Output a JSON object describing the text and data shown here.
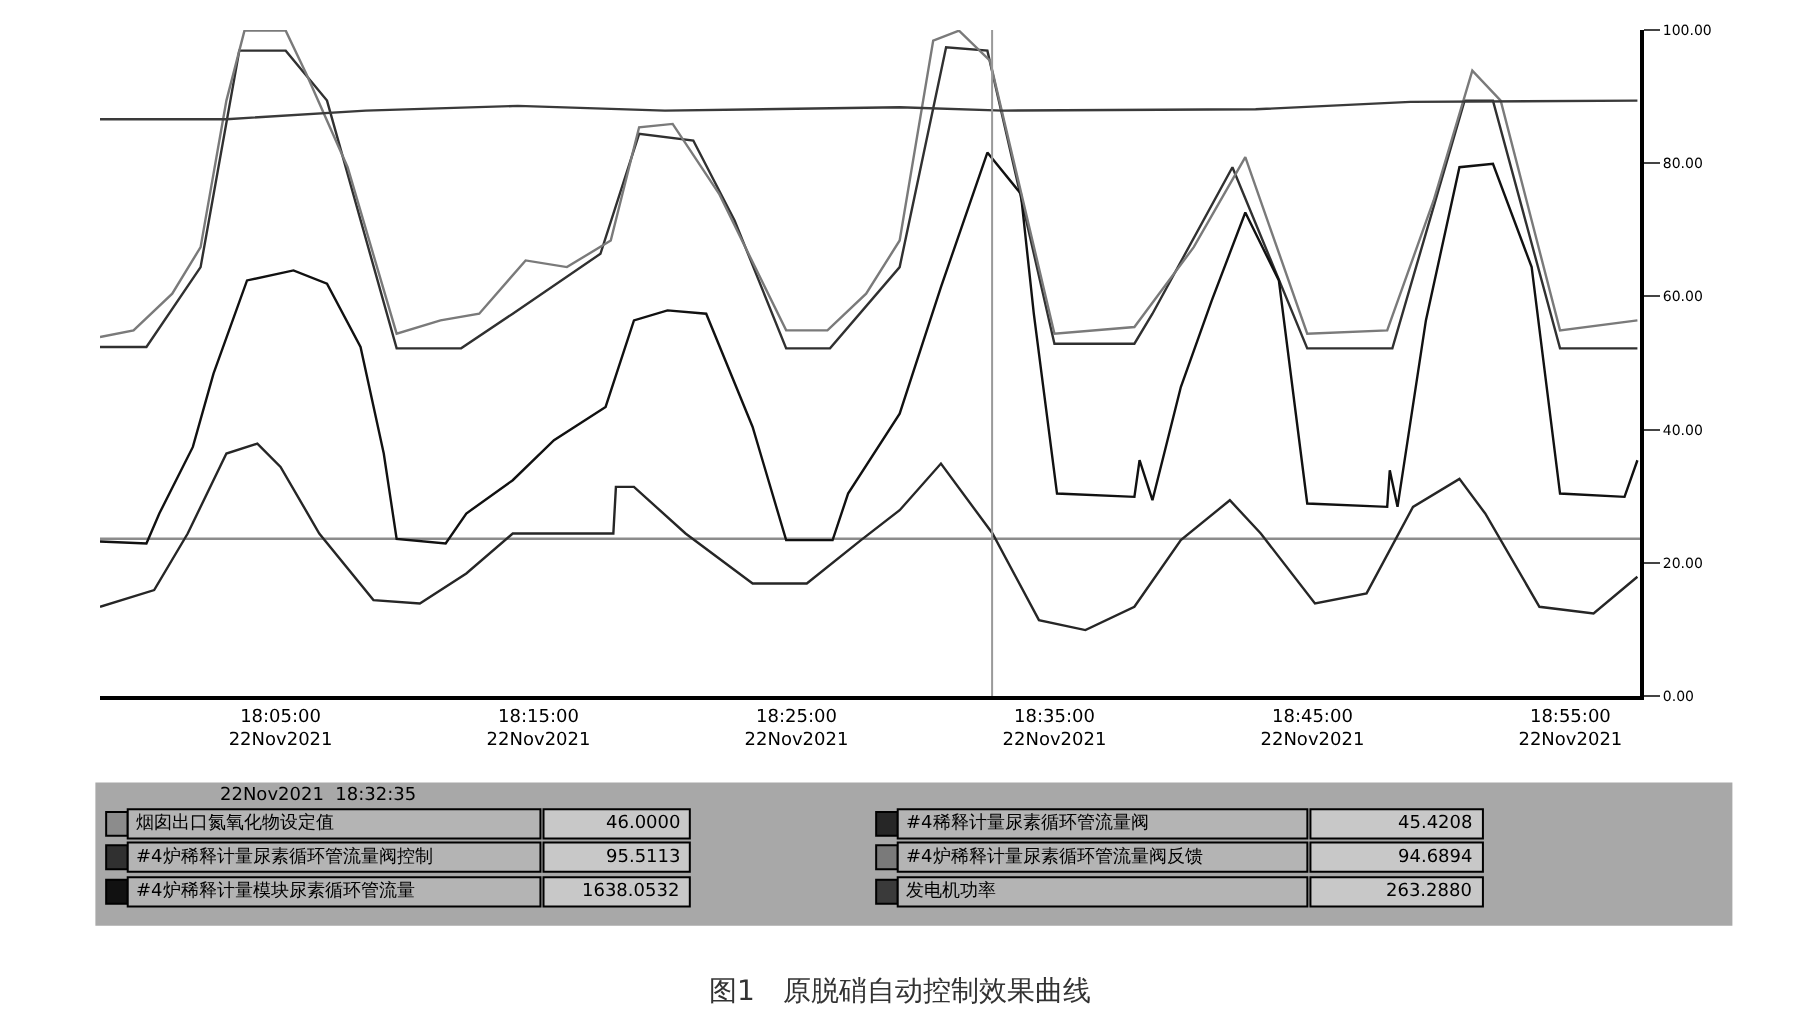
{
  "chart_data": {
    "type": "line",
    "title": "图1　原脱硝自动控制效果曲线",
    "legend": "bottom",
    "xlim": [
      "2021-11-22T17:58:00",
      "2021-11-22T18:57:42"
    ],
    "xticks": [
      {
        "value": "2021-11-22T18:05",
        "label": "18:05:00\n22Nov2021"
      },
      {
        "value": "2021-11-22T18:15",
        "label": "18:15:00\n22Nov2021"
      },
      {
        "value": "2021-11-22T18:25",
        "label": "18:25:00\n22Nov2021"
      },
      {
        "value": "2021-11-22T18:35",
        "label": "18:35:00\n22Nov2021"
      },
      {
        "value": "2021-11-22T18:45",
        "label": "18:45:00\n22Nov2021"
      },
      {
        "value": "2021-11-22T18:55",
        "label": "18:55:00\n22Nov2021"
      }
    ],
    "ylim": [
      0,
      100
    ],
    "yticks": [
      {
        "value": 0,
        "label": "0.00"
      },
      {
        "value": 20,
        "label": "20.00"
      },
      {
        "value": 40,
        "label": "40.00"
      },
      {
        "value": 60,
        "label": "60.00"
      },
      {
        "value": 80,
        "label": "80.00"
      },
      {
        "value": 100,
        "label": "100.00"
      }
    ],
    "ref_lines": [
      {
        "axis": "x",
        "value": "2021-11-22T18:32:35",
        "color": "#9a9a9a"
      }
    ],
    "annotations": [
      "46.0000",
      "95.5113",
      "1638.0532",
      "45.4208",
      "94.6894",
      "263.2880",
      "22Nov2021  18:32:35"
    ],
    "series": [
      {
        "name": "烟囱出口氮氧化物设定值",
        "color": "#8c8c8c",
        "x": [
          "2021-11-22T17:58:00",
          "2021-11-22T18:57:42"
        ],
        "values": [
          23.6,
          23.6
        ]
      },
      {
        "name": "#4炉稀释计量尿素循环管流量阀控制",
        "color": "#303030",
        "x": [
          "2021-11-22T17:58:00",
          "2021-11-22T17:59:48",
          "2021-11-22T18:01:54",
          "2021-11-22T18:03:24",
          "2021-11-22T18:05:12",
          "2021-11-22T18:06:48",
          "2021-11-22T18:09:30",
          "2021-11-22T18:12:00",
          "2021-11-22T18:14:00",
          "2021-11-22T18:17:24",
          "2021-11-22T18:18:54",
          "2021-11-22T18:21:00",
          "2021-11-22T18:22:36",
          "2021-11-22T18:24:36",
          "2021-11-22T18:26:18",
          "2021-11-22T18:29:00",
          "2021-11-22T18:30:48",
          "2021-11-22T18:32:24",
          "2021-11-22T18:35:00",
          "2021-11-22T18:38:06",
          "2021-11-22T18:38:48",
          "2021-11-22T18:41:54",
          "2021-11-22T18:44:48",
          "2021-11-22T18:48:06",
          "2021-11-22T18:50:54",
          "2021-11-22T18:52:00",
          "2021-11-22T18:54:36",
          "2021-11-22T18:57:36"
        ],
        "values": [
          52.4,
          52.4,
          64.4,
          96.9,
          96.9,
          89.4,
          52.2,
          52.2,
          57.4,
          66.4,
          84.4,
          83.4,
          71.4,
          52.2,
          52.2,
          64.4,
          97.4,
          96.9,
          52.9,
          52.9,
          57.4,
          79.4,
          52.2,
          52.2,
          89.4,
          89.4,
          52.2,
          52.2
        ]
      },
      {
        "name": "#4炉稀释计量模块尿素循环管流量",
        "color": "#111111",
        "x": [
          "2021-11-22T17:58:00",
          "2021-11-22T17:59:48",
          "2021-11-22T18:00:18",
          "2021-11-22T18:01:36",
          "2021-11-22T18:02:24",
          "2021-11-22T18:03:42",
          "2021-11-22T18:05:30",
          "2021-11-22T18:06:48",
          "2021-11-22T18:08:06",
          "2021-11-22T18:09:00",
          "2021-11-22T18:09:30",
          "2021-11-22T18:11:24",
          "2021-11-22T18:12:12",
          "2021-11-22T18:14:00",
          "2021-11-22T18:15:36",
          "2021-11-22T18:17:36",
          "2021-11-22T18:18:42",
          "2021-11-22T18:20:00",
          "2021-11-22T18:21:30",
          "2021-11-22T18:23:18",
          "2021-11-22T18:24:36",
          "2021-11-22T18:26:24",
          "2021-11-22T18:27:00",
          "2021-11-22T18:29:00",
          "2021-11-22T18:30:36",
          "2021-11-22T18:32:24",
          "2021-11-22T18:33:42",
          "2021-11-22T18:34:12",
          "2021-11-22T18:35:06",
          "2021-11-22T18:38:06",
          "2021-11-22T18:38:18",
          "2021-11-22T18:38:48",
          "2021-11-22T18:39:54",
          "2021-11-22T18:41:06",
          "2021-11-22T18:42:24",
          "2021-11-22T18:43:42",
          "2021-11-22T18:44:48",
          "2021-11-22T18:47:54",
          "2021-11-22T18:48:00",
          "2021-11-22T18:48:18",
          "2021-11-22T18:49:24",
          "2021-11-22T18:50:42",
          "2021-11-22T18:52:00",
          "2021-11-22T18:53:30",
          "2021-11-22T18:54:36",
          "2021-11-22T18:57:06",
          "2021-11-22T18:57:36"
        ],
        "values": [
          23.2,
          22.9,
          27.4,
          37.4,
          48.4,
          62.4,
          63.9,
          61.9,
          52.4,
          36.4,
          23.6,
          22.9,
          27.4,
          32.4,
          38.4,
          43.4,
          56.4,
          57.9,
          57.4,
          40.4,
          23.4,
          23.4,
          30.4,
          42.4,
          61.4,
          81.6,
          75.4,
          57.4,
          30.4,
          29.9,
          35.4,
          29.4,
          46.4,
          59.4,
          72.6,
          62.4,
          28.9,
          28.4,
          33.9,
          28.4,
          56.4,
          79.4,
          79.9,
          64.4,
          30.4,
          29.9,
          35.4
        ]
      },
      {
        "name": "#4稀释计量尿素循环管流量阀",
        "color": "#262626",
        "x": [
          "2021-11-22T17:58:00",
          "2021-11-22T18:00:06",
          "2021-11-22T18:01:24",
          "2021-11-22T18:02:54",
          "2021-11-22T18:04:06",
          "2021-11-22T18:05:00",
          "2021-11-22T18:06:30",
          "2021-11-22T18:08:36",
          "2021-11-22T18:10:24",
          "2021-11-22T18:12:12",
          "2021-11-22T18:14:00",
          "2021-11-22T18:17:54",
          "2021-11-22T18:18:00",
          "2021-11-22T18:18:42",
          "2021-11-22T18:20:42",
          "2021-11-22T18:23:18",
          "2021-11-22T18:25:24",
          "2021-11-22T18:27:30",
          "2021-11-22T18:29:00",
          "2021-11-22T18:30:36",
          "2021-11-22T18:32:36",
          "2021-11-22T18:34:24",
          "2021-11-22T18:36:12",
          "2021-11-22T18:38:06",
          "2021-11-22T18:39:54",
          "2021-11-22T18:41:48",
          "2021-11-22T18:43:00",
          "2021-11-22T18:45:06",
          "2021-11-22T18:47:06",
          "2021-11-22T18:48:54",
          "2021-11-22T18:50:42",
          "2021-11-22T18:51:42",
          "2021-11-22T18:53:48",
          "2021-11-22T18:55:54",
          "2021-11-22T18:57:36"
        ],
        "values": [
          13.4,
          15.9,
          24.4,
          36.4,
          37.9,
          34.4,
          24.4,
          14.4,
          13.9,
          18.4,
          24.4,
          24.4,
          31.4,
          31.4,
          24.4,
          16.9,
          16.9,
          23.4,
          27.9,
          34.9,
          24.4,
          11.4,
          9.9,
          13.4,
          23.4,
          29.4,
          24.4,
          13.9,
          15.4,
          28.4,
          32.6,
          27.4,
          13.4,
          12.4,
          17.9
        ]
      },
      {
        "name": "#4炉稀释计量尿素循环管流量阀反馈",
        "color": "#7a7a7a",
        "x": [
          "2021-11-22T17:58:00",
          "2021-11-22T17:59:18",
          "2021-11-22T18:00:48",
          "2021-11-22T18:01:54",
          "2021-11-22T18:02:54",
          "2021-11-22T18:03:36",
          "2021-11-22T18:05:12",
          "2021-11-22T18:06:00",
          "2021-11-22T18:07:36",
          "2021-11-22T18:09:30",
          "2021-11-22T18:11:12",
          "2021-11-22T18:12:42",
          "2021-11-22T18:14:30",
          "2021-11-22T18:16:06",
          "2021-11-22T18:17:48",
          "2021-11-22T18:18:54",
          "2021-11-22T18:20:12",
          "2021-11-22T18:22:00",
          "2021-11-22T18:24:36",
          "2021-11-22T18:26:12",
          "2021-11-22T18:27:42",
          "2021-11-22T18:29:00",
          "2021-11-22T18:30:18",
          "2021-11-22T18:31:18",
          "2021-11-22T18:32:30",
          "2021-11-22T18:35:00",
          "2021-11-22T18:38:06",
          "2021-11-22T18:40:24",
          "2021-11-22T18:42:24",
          "2021-11-22T18:44:48",
          "2021-11-22T18:47:54",
          "2021-11-22T18:49:42",
          "2021-11-22T18:51:12",
          "2021-11-22T18:52:18",
          "2021-11-22T18:54:36",
          "2021-11-22T18:57:36"
        ],
        "values": [
          53.9,
          54.9,
          60.4,
          67.4,
          89.4,
          99.9,
          99.9,
          93.4,
          79.4,
          54.4,
          56.4,
          57.4,
          65.4,
          64.4,
          68.4,
          85.4,
          85.9,
          75.4,
          54.9,
          54.9,
          60.4,
          68.4,
          98.4,
          99.9,
          95.4,
          54.4,
          55.4,
          67.4,
          80.9,
          54.4,
          54.9,
          74.4,
          93.9,
          89.4,
          54.9,
          56.4
        ]
      },
      {
        "name": "发电机功率",
        "color": "#3a3a3a",
        "x": [
          "2021-11-22T17:58:00",
          "2021-11-22T18:02:54",
          "2021-11-22T18:08:18",
          "2021-11-22T18:14:12",
          "2021-11-22T18:19:54",
          "2021-11-22T18:29:00",
          "2021-11-22T18:33:00",
          "2021-11-22T18:42:48",
          "2021-11-22T18:48:48",
          "2021-11-22T18:57:36"
        ],
        "values": [
          86.6,
          86.6,
          87.9,
          88.6,
          87.9,
          88.4,
          87.9,
          88.1,
          89.2,
          89.4
        ]
      }
    ]
  }
}
